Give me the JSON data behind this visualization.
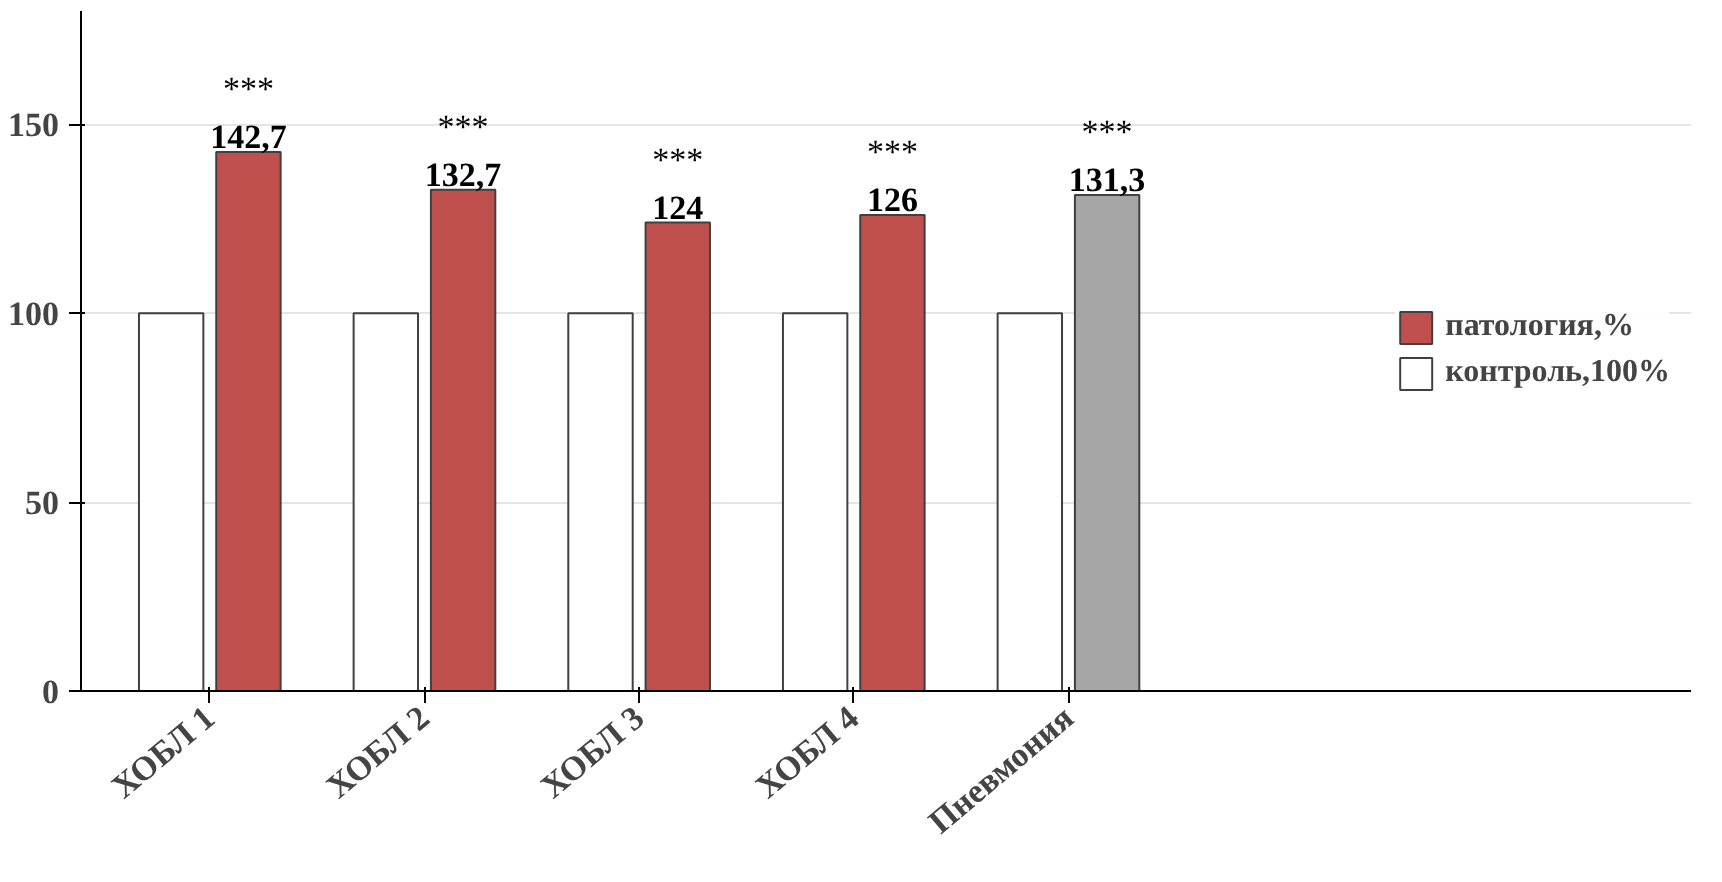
{
  "chart_data": {
    "type": "bar",
    "categories": [
      "ХОБЛ 1",
      "ХОБЛ 2",
      "ХОБЛ 3",
      "ХОБЛ 4",
      "Пневмония"
    ],
    "series": [
      {
        "name": "контроль,100%",
        "color": "#ffffff",
        "values": [
          100,
          100,
          100,
          100,
          100
        ]
      },
      {
        "name": "патология,%",
        "colors": [
          "#c0504d",
          "#c0504d",
          "#c0504d",
          "#c0504d",
          "#a6a6a6"
        ],
        "values": [
          142.7,
          132.7,
          124,
          126,
          131.3
        ],
        "value_labels": [
          "142,7",
          "132,7",
          "124",
          "126",
          "131,3"
        ]
      }
    ],
    "ylim": [
      0,
      180
    ],
    "yticks": [
      0,
      50,
      100,
      150
    ],
    "grid": "y",
    "legend": "right",
    "annotations": [
      {
        "text": "***",
        "x": "ХОБЛ 1",
        "y": 142.7
      },
      {
        "text": "***",
        "x": "ХОБЛ 2",
        "y": 132.7
      },
      {
        "text": "***",
        "x": "ХОБЛ 3",
        "y": 124
      },
      {
        "text": "***",
        "x": "ХОБЛ 4",
        "y": 126
      },
      {
        "text": "***",
        "x": "Пневмония",
        "y": 131.3
      }
    ]
  }
}
